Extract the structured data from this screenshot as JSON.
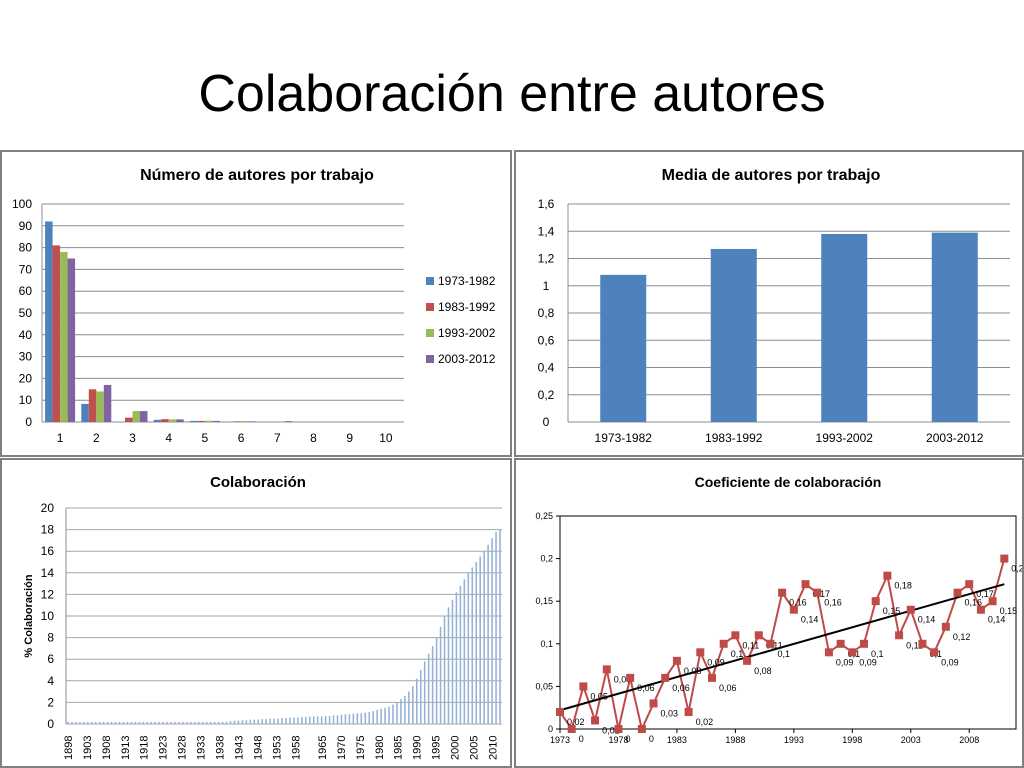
{
  "slide": {
    "title": "Colaboración entre autores"
  },
  "chart_data": [
    {
      "type": "bar",
      "title": "Número de autores por trabajo",
      "categories": [
        "1",
        "2",
        "3",
        "4",
        "5",
        "6",
        "7",
        "8",
        "9",
        "10"
      ],
      "series": [
        {
          "name": "1973-1982",
          "color": "#4f81bd",
          "values": [
            92,
            8.3,
            0,
            1,
            0.5,
            0,
            0,
            0,
            0,
            0
          ]
        },
        {
          "name": "1983-1992",
          "color": "#c0504d",
          "values": [
            81,
            15,
            2,
            1.3,
            0.5,
            0.3,
            0,
            0,
            0,
            0
          ]
        },
        {
          "name": "1993-2002",
          "color": "#9bbb59",
          "values": [
            78,
            14,
            5,
            1.2,
            0.6,
            0.4,
            0,
            0,
            0,
            0
          ]
        },
        {
          "name": "2003-2012",
          "color": "#8064a2",
          "values": [
            75,
            17,
            5,
            1.2,
            0.5,
            0.3,
            0.4,
            0,
            0,
            0
          ]
        }
      ],
      "y_ticks": [
        "0",
        "10",
        "20",
        "30",
        "40",
        "50",
        "60",
        "70",
        "80",
        "90",
        "100"
      ],
      "ylim": [
        0,
        100
      ],
      "legend": "right",
      "grid": true
    },
    {
      "type": "bar",
      "title": "Media de autores por trabajo",
      "categories": [
        "1973-1982",
        "1983-1992",
        "1993-2002",
        "2003-2012"
      ],
      "values": [
        1.08,
        1.27,
        1.38,
        1.39
      ],
      "color": "#4f81bd",
      "y_ticks": [
        "0",
        "0,2",
        "0,4",
        "0,6",
        "0,8",
        "1",
        "1,2",
        "1,4",
        "1,6"
      ],
      "ylim": [
        0,
        1.6
      ],
      "grid": true
    },
    {
      "type": "bar",
      "title": "Colaboración",
      "ylabel": "% Colaboración",
      "color": "#95b3d7",
      "x_start": 1898,
      "x_end": 2012,
      "x_ticks": [
        "1898",
        "1903",
        "1908",
        "1913",
        "1918",
        "1923",
        "1928",
        "1933",
        "1938",
        "1943",
        "1948",
        "1953",
        "1958",
        "1965",
        "1970",
        "1975",
        "1980",
        "1985",
        "1990",
        "1995",
        "2000",
        "2005",
        "2010"
      ],
      "values": [
        0.2,
        0.2,
        0.2,
        0.2,
        0.2,
        0.2,
        0.2,
        0.2,
        0.2,
        0.2,
        0.2,
        0.2,
        0.2,
        0.2,
        0.2,
        0.2,
        0.2,
        0.2,
        0.2,
        0.2,
        0.2,
        0.2,
        0.2,
        0.2,
        0.2,
        0.2,
        0.2,
        0.2,
        0.2,
        0.2,
        0.2,
        0.2,
        0.2,
        0.2,
        0.2,
        0.2,
        0.2,
        0.2,
        0.2,
        0.2,
        0.2,
        0.25,
        0.3,
        0.3,
        0.35,
        0.35,
        0.4,
        0.4,
        0.4,
        0.45,
        0.45,
        0.5,
        0.5,
        0.5,
        0.55,
        0.55,
        0.6,
        0.6,
        0.6,
        0.65,
        0.65,
        0.7,
        0.7,
        0.7,
        0.7,
        0.75,
        0.75,
        0.8,
        0.8,
        0.85,
        0.9,
        0.9,
        0.95,
        1.0,
        1.0,
        1.05,
        1.1,
        1.2,
        1.3,
        1.4,
        1.5,
        1.6,
        1.8,
        2.0,
        2.3,
        2.6,
        3.0,
        3.5,
        4.2,
        5.0,
        5.8,
        6.5,
        7.2,
        8.0,
        9.0,
        10.0,
        10.8,
        11.5,
        12.2,
        12.8,
        13.4,
        14.0,
        14.5,
        15.0,
        15.5,
        16.0,
        16.6,
        17.2,
        17.8,
        18.0
      ],
      "y_ticks": [
        "0",
        "2",
        "4",
        "6",
        "8",
        "10",
        "12",
        "14",
        "16",
        "18",
        "20"
      ],
      "ylim": [
        0,
        20
      ],
      "grid": true
    },
    {
      "type": "line",
      "title": "Coeficiente de colaboración",
      "color": "#be4b48",
      "trend_color": "#000000",
      "x": [
        1973,
        1974,
        1975,
        1976,
        1977,
        1978,
        1979,
        1980,
        1981,
        1982,
        1983,
        1984,
        1985,
        1986,
        1987,
        1988,
        1989,
        1990,
        1991,
        1992,
        1993,
        1994,
        1995,
        1996,
        1997,
        1998,
        1999,
        2000,
        2001,
        2002,
        2003,
        2004,
        2005,
        2006,
        2007,
        2008,
        2009,
        2010,
        2011
      ],
      "values": [
        0.02,
        0,
        0.05,
        0.01,
        0.07,
        0,
        0.06,
        0,
        0.03,
        0.06,
        0.08,
        0.02,
        0.09,
        0.06,
        0.1,
        0.11,
        0.08,
        0.11,
        0.1,
        0.16,
        0.14,
        0.17,
        0.16,
        0.09,
        0.1,
        0.09,
        0.1,
        0.15,
        0.18,
        0.11,
        0.14,
        0.1,
        0.09,
        0.12,
        0.16,
        0.17,
        0.14,
        0.15,
        0.2
      ],
      "labels": [
        "0,02",
        "0",
        "0,05",
        "0,01",
        "0,07",
        "0",
        "0,06",
        "0",
        "0,03",
        "0,06",
        "0,08",
        "0,02",
        "0,09",
        "0,06",
        "0,1",
        "0,11",
        "0,08",
        "0,11",
        "0,1",
        "0,16",
        "0,14",
        "0,17",
        "0,16",
        "0,09",
        "0,1",
        "0,09",
        "0,1",
        "0,15",
        "0,18",
        "0,11",
        "0,14",
        "0,1",
        "0,09",
        "0,12",
        "0,16",
        "0,17",
        "0,14",
        "0,15",
        "0,2"
      ],
      "trend": [
        [
          1973,
          0.022
        ],
        [
          2011,
          0.17
        ]
      ],
      "x_ticks": [
        "1973",
        "1978",
        "1983",
        "1988",
        "1993",
        "1998",
        "2003",
        "2008"
      ],
      "y_ticks": [
        "0",
        "0,05",
        "0,1",
        "0,15",
        "0,2",
        "0,25"
      ],
      "ylim": [
        0,
        0.25
      ],
      "grid": false
    }
  ]
}
